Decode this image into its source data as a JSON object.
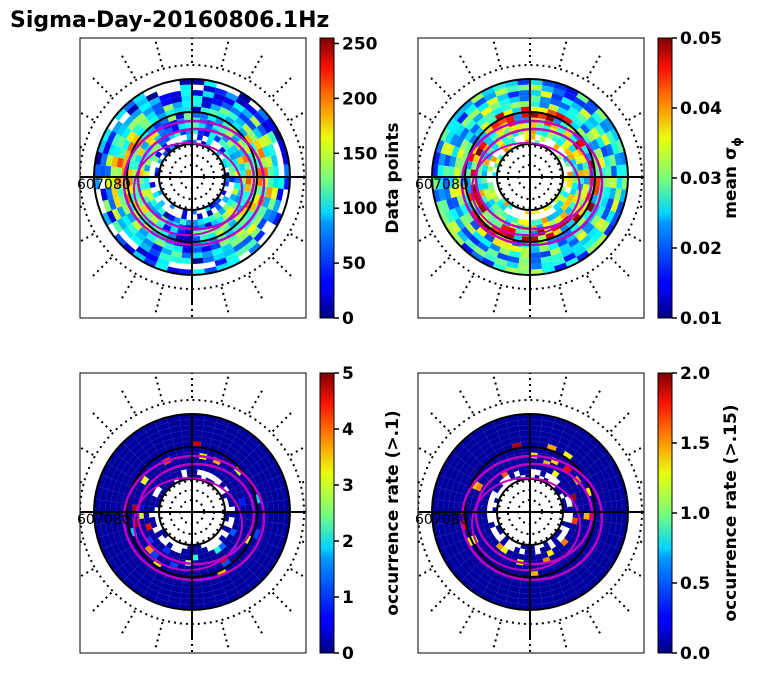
{
  "figure": {
    "title": "Sigma-Day-20160806.1Hz"
  },
  "chart_data": [
    {
      "type": "heatmap",
      "projection": "polar",
      "colormap": "jet",
      "ring_labels": [
        "60",
        "70",
        "80"
      ],
      "colorbar": {
        "label": "Data points",
        "range": [
          0,
          255
        ],
        "ticks": [
          "0",
          "50",
          "100",
          "150",
          "200",
          "250"
        ]
      }
    },
    {
      "type": "heatmap",
      "projection": "polar",
      "colormap": "jet",
      "ring_labels": [
        "60",
        "70",
        "80"
      ],
      "colorbar": {
        "label": "mean σ",
        "label_subscript": "ϕ",
        "range": [
          0.01,
          0.05
        ],
        "ticks": [
          "0.01",
          "0.02",
          "0.03",
          "0.04",
          "0.05"
        ]
      }
    },
    {
      "type": "heatmap",
      "projection": "polar",
      "colormap": "jet",
      "ring_labels": [
        "60",
        "70",
        "80"
      ],
      "colorbar": {
        "label": "occurrence rate (>.1)",
        "range": [
          0,
          5
        ],
        "ticks": [
          "0",
          "1",
          "2",
          "3",
          "4",
          "5"
        ]
      }
    },
    {
      "type": "heatmap",
      "projection": "polar",
      "colormap": "jet",
      "ring_labels": [
        "60",
        "70",
        "80"
      ],
      "colorbar": {
        "label": "occurrence rate (>.15)",
        "range": [
          0,
          2
        ],
        "ticks": [
          "0.0",
          "0.5",
          "1.0",
          "1.5",
          "2.0"
        ]
      }
    }
  ]
}
